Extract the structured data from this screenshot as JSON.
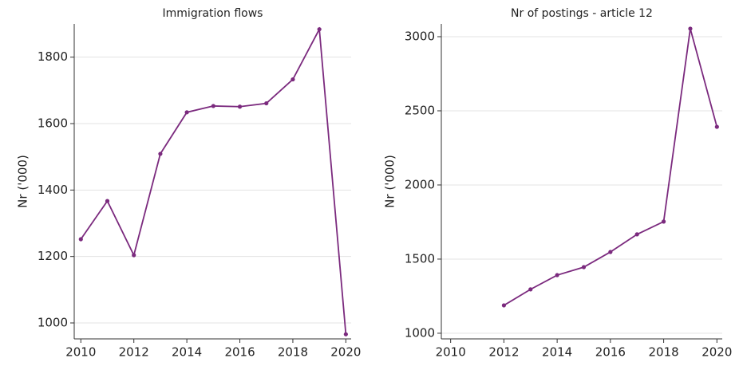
{
  "chart_data": [
    {
      "type": "line",
      "title": "Immigration flows",
      "y_label": "Nr ('000)",
      "x": [
        2010,
        2011,
        2012,
        2013,
        2014,
        2015,
        2016,
        2017,
        2018,
        2019,
        2020
      ],
      "series": [
        {
          "name": "Immigration flows",
          "color": "#7b2a7e",
          "values": [
            1252,
            1367,
            1204,
            1509,
            1634,
            1653,
            1651,
            1661,
            1733,
            1884,
            966
          ]
        }
      ],
      "xlim": [
        2009.75,
        2020.2
      ],
      "xticks": [
        2010,
        2012,
        2014,
        2016,
        2018,
        2020
      ],
      "ylim": [
        952,
        1900
      ],
      "yticks": [
        1000,
        1200,
        1400,
        1600,
        1800
      ],
      "grid": true
    },
    {
      "type": "line",
      "title": "Nr of postings - article 12",
      "y_label": "Nr ('000)",
      "x": [
        2012,
        2013,
        2014,
        2015,
        2016,
        2017,
        2018,
        2019,
        2020
      ],
      "series": [
        {
          "name": "Nr of postings - article 12",
          "color": "#7b2a7e",
          "values": [
            1188,
            1296,
            1392,
            1446,
            1548,
            1667,
            1753,
            3054,
            2392
          ]
        }
      ],
      "xlim": [
        2009.65,
        2020.2
      ],
      "xticks": [
        2010,
        2012,
        2014,
        2016,
        2018,
        2020
      ],
      "ylim": [
        962,
        3086
      ],
      "yticks": [
        1000,
        1500,
        2000,
        2500,
        3000
      ],
      "grid": true
    }
  ]
}
